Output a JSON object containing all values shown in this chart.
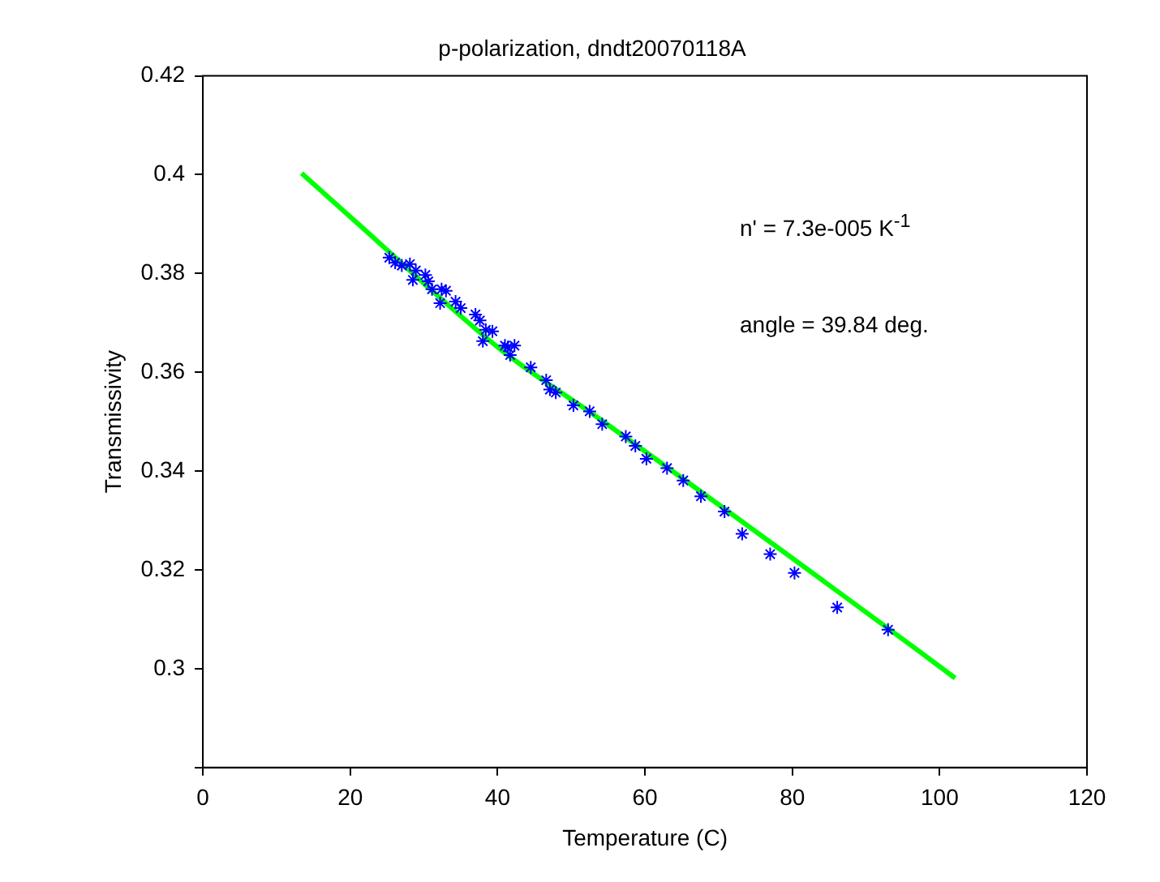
{
  "chart_data": {
    "type": "scatter",
    "title": "p-polarization, dndt20070118A",
    "xlabel": "Temperature (C)",
    "ylabel": "Transmissivity",
    "xlim": [
      0,
      120
    ],
    "xticks": [
      0,
      20,
      40,
      60,
      80,
      100,
      120
    ],
    "ylim": [
      0.28,
      0.42
    ],
    "yticks": [
      {
        "value": 0.28,
        "label": null
      },
      0.3,
      0.32,
      0.34,
      0.36,
      0.38,
      0.4,
      0.42
    ],
    "grid": false,
    "legend": false,
    "annotations": [
      "n' = 7.3e-005 K$^{-1}$",
      "angle = 39.84 deg."
    ],
    "series": [
      {
        "type": "scatter",
        "color": "#0000ff",
        "marker": "cross",
        "x": [
          25.3,
          26.1,
          27.0,
          28.1,
          28.9,
          28.5,
          30.2,
          30.6,
          31.1,
          32.4,
          32.2,
          33.0,
          34.3,
          35.0,
          37.0,
          37.6,
          38.4,
          38.0,
          39.3,
          41.0,
          41.7,
          41.4,
          42.3,
          44.5,
          46.6,
          47.1,
          47.9,
          50.3,
          52.5,
          54.2,
          57.4,
          58.7,
          60.2,
          63.0,
          65.2,
          67.6,
          70.8,
          73.2,
          77.0,
          80.3,
          86.1,
          93.0
        ],
        "values": [
          0.3832,
          0.3822,
          0.3816,
          0.3819,
          0.3806,
          0.3787,
          0.3797,
          0.3784,
          0.3768,
          0.3768,
          0.374,
          0.3765,
          0.3743,
          0.373,
          0.3717,
          0.3705,
          0.3686,
          0.3663,
          0.3683,
          0.3654,
          0.3635,
          0.3651,
          0.3654,
          0.361,
          0.3584,
          0.3565,
          0.3559,
          0.3533,
          0.3521,
          0.3495,
          0.347,
          0.3451,
          0.3425,
          0.3406,
          0.3381,
          0.3349,
          0.3318,
          0.3273,
          0.3232,
          0.3194,
          0.3124,
          0.3079
        ]
      },
      {
        "type": "line",
        "color": "#00ff00",
        "marker": "none",
        "x": [
          13.4,
          20.5,
          40.6,
          54.2,
          96.7,
          102.1
        ],
        "values": [
          0.4003,
          0.3908,
          0.3644,
          0.3502,
          0.3041,
          0.2981
        ]
      }
    ]
  }
}
